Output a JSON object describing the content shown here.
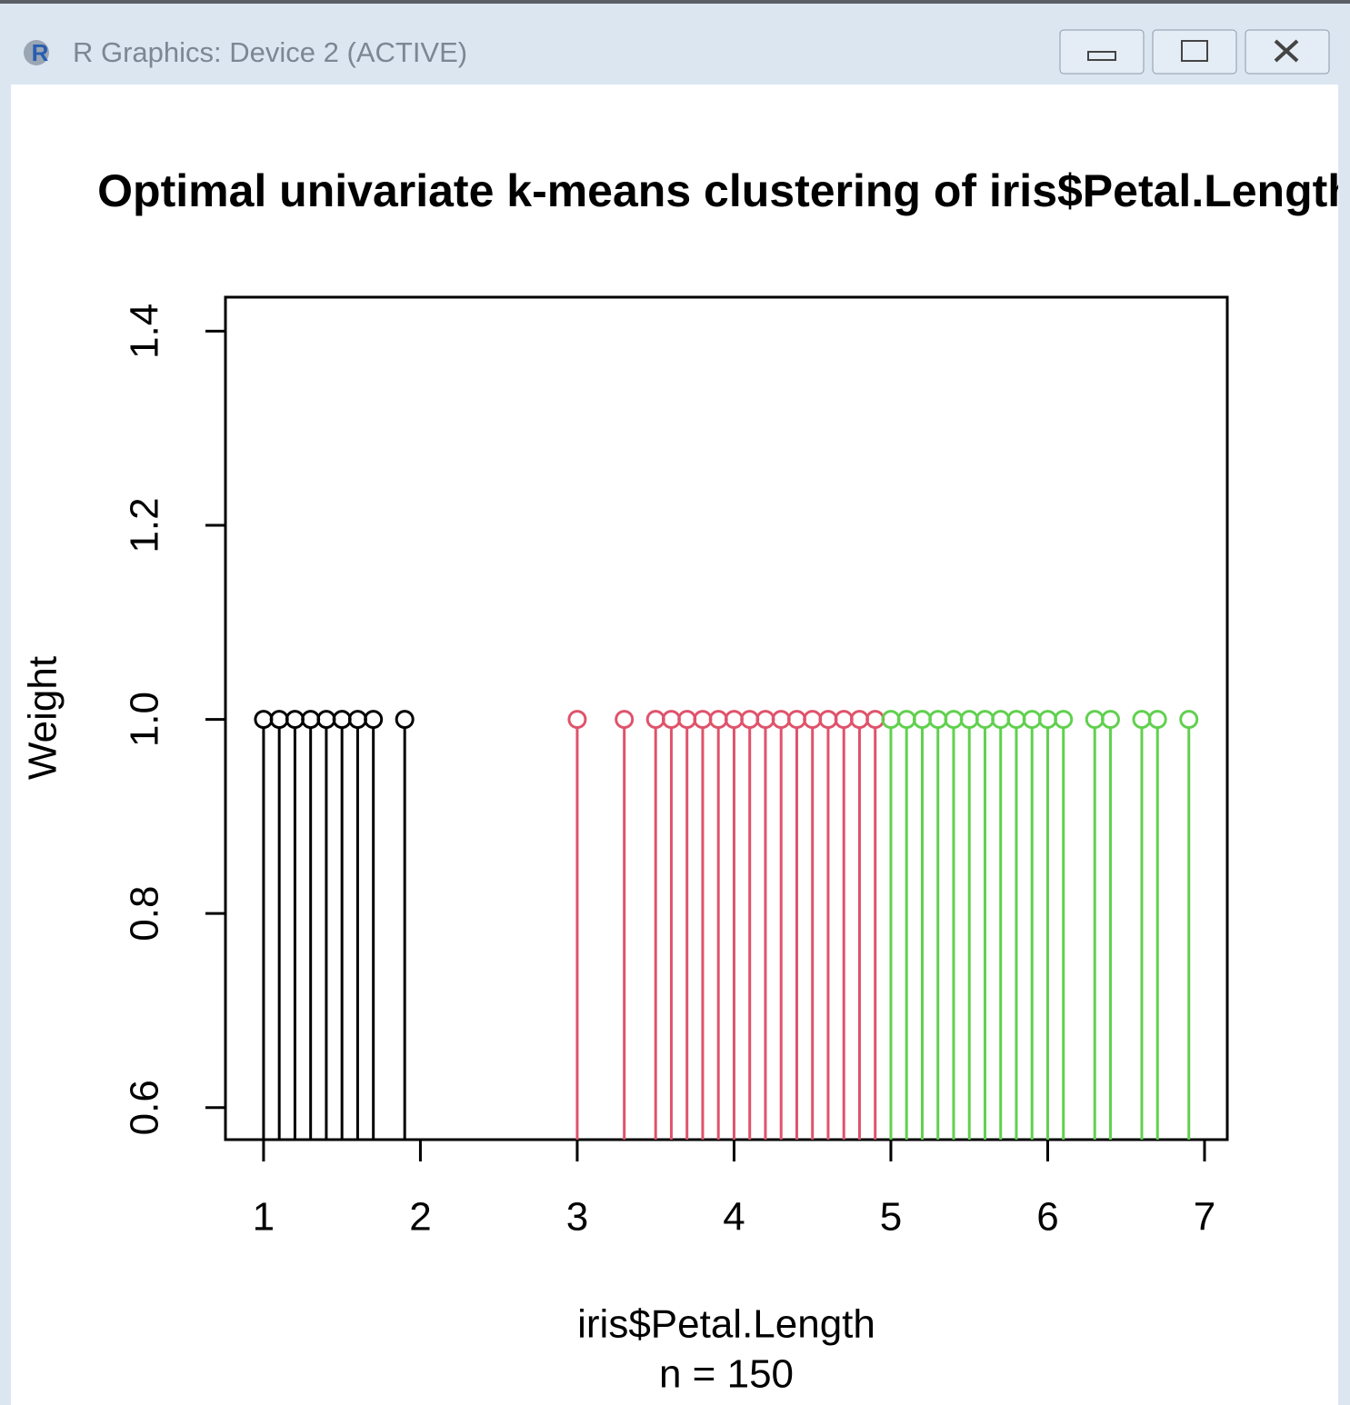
{
  "window": {
    "title": "R Graphics: Device 2 (ACTIVE)"
  },
  "chart_data": {
    "type": "stem",
    "title": "Optimal univariate k-means clustering of iris$Petal.Length",
    "x_label": "iris$Petal.Length",
    "subtitle": "n = 150",
    "y_label": "Weight",
    "series": [
      {
        "color": "#000000",
        "x": [
          1.0,
          1.1,
          1.2,
          1.3,
          1.4,
          1.5,
          1.6,
          1.7,
          1.9
        ],
        "values": [
          1,
          1,
          1,
          1,
          1,
          1,
          1,
          1,
          1
        ]
      },
      {
        "color": "#DF536B",
        "x": [
          3.0,
          3.3,
          3.5,
          3.6,
          3.7,
          3.8,
          3.9,
          4.0,
          4.1,
          4.2,
          4.3,
          4.4,
          4.5,
          4.6,
          4.7,
          4.8,
          4.9
        ],
        "values": [
          1,
          1,
          1,
          1,
          1,
          1,
          1,
          1,
          1,
          1,
          1,
          1,
          1,
          1,
          1,
          1,
          1
        ]
      },
      {
        "color": "#61D04F",
        "x": [
          5.0,
          5.1,
          5.2,
          5.3,
          5.4,
          5.5,
          5.6,
          5.7,
          5.8,
          5.9,
          6.0,
          6.1,
          6.3,
          6.4,
          6.6,
          6.7,
          6.9
        ],
        "values": [
          1,
          1,
          1,
          1,
          1,
          1,
          1,
          1,
          1,
          1,
          1,
          1,
          1,
          1,
          1,
          1,
          1
        ]
      }
    ],
    "xlim": [
      0.757,
      7.145
    ],
    "ylim": [
      0.567,
      1.435
    ],
    "xticks": [
      1,
      2,
      3,
      4,
      5,
      6,
      7
    ],
    "yticks": [
      0.6,
      0.8,
      {
        "value": 1,
        "label": "1.0"
      },
      1.2,
      1.4
    ]
  }
}
